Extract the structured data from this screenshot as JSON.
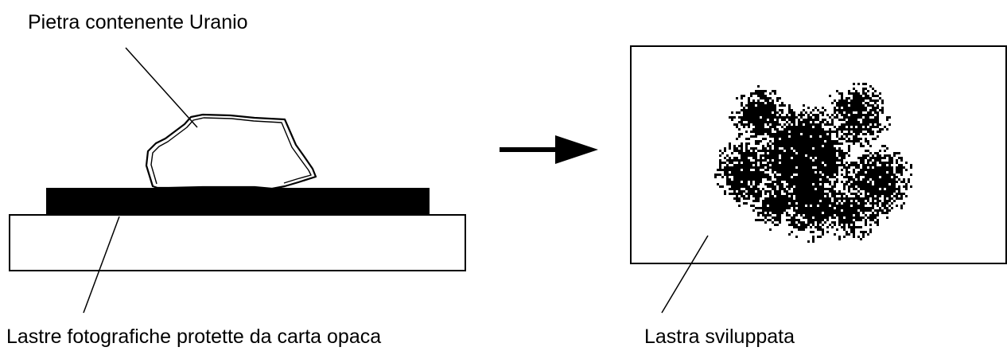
{
  "labels": {
    "stone": "Pietra contenente Uranio",
    "plates": "Lastre fotografiche protette da carta opaca",
    "developed": "Lastra sviluppata"
  },
  "colors": {
    "ink": "#000000",
    "paper": "#ffffff"
  }
}
